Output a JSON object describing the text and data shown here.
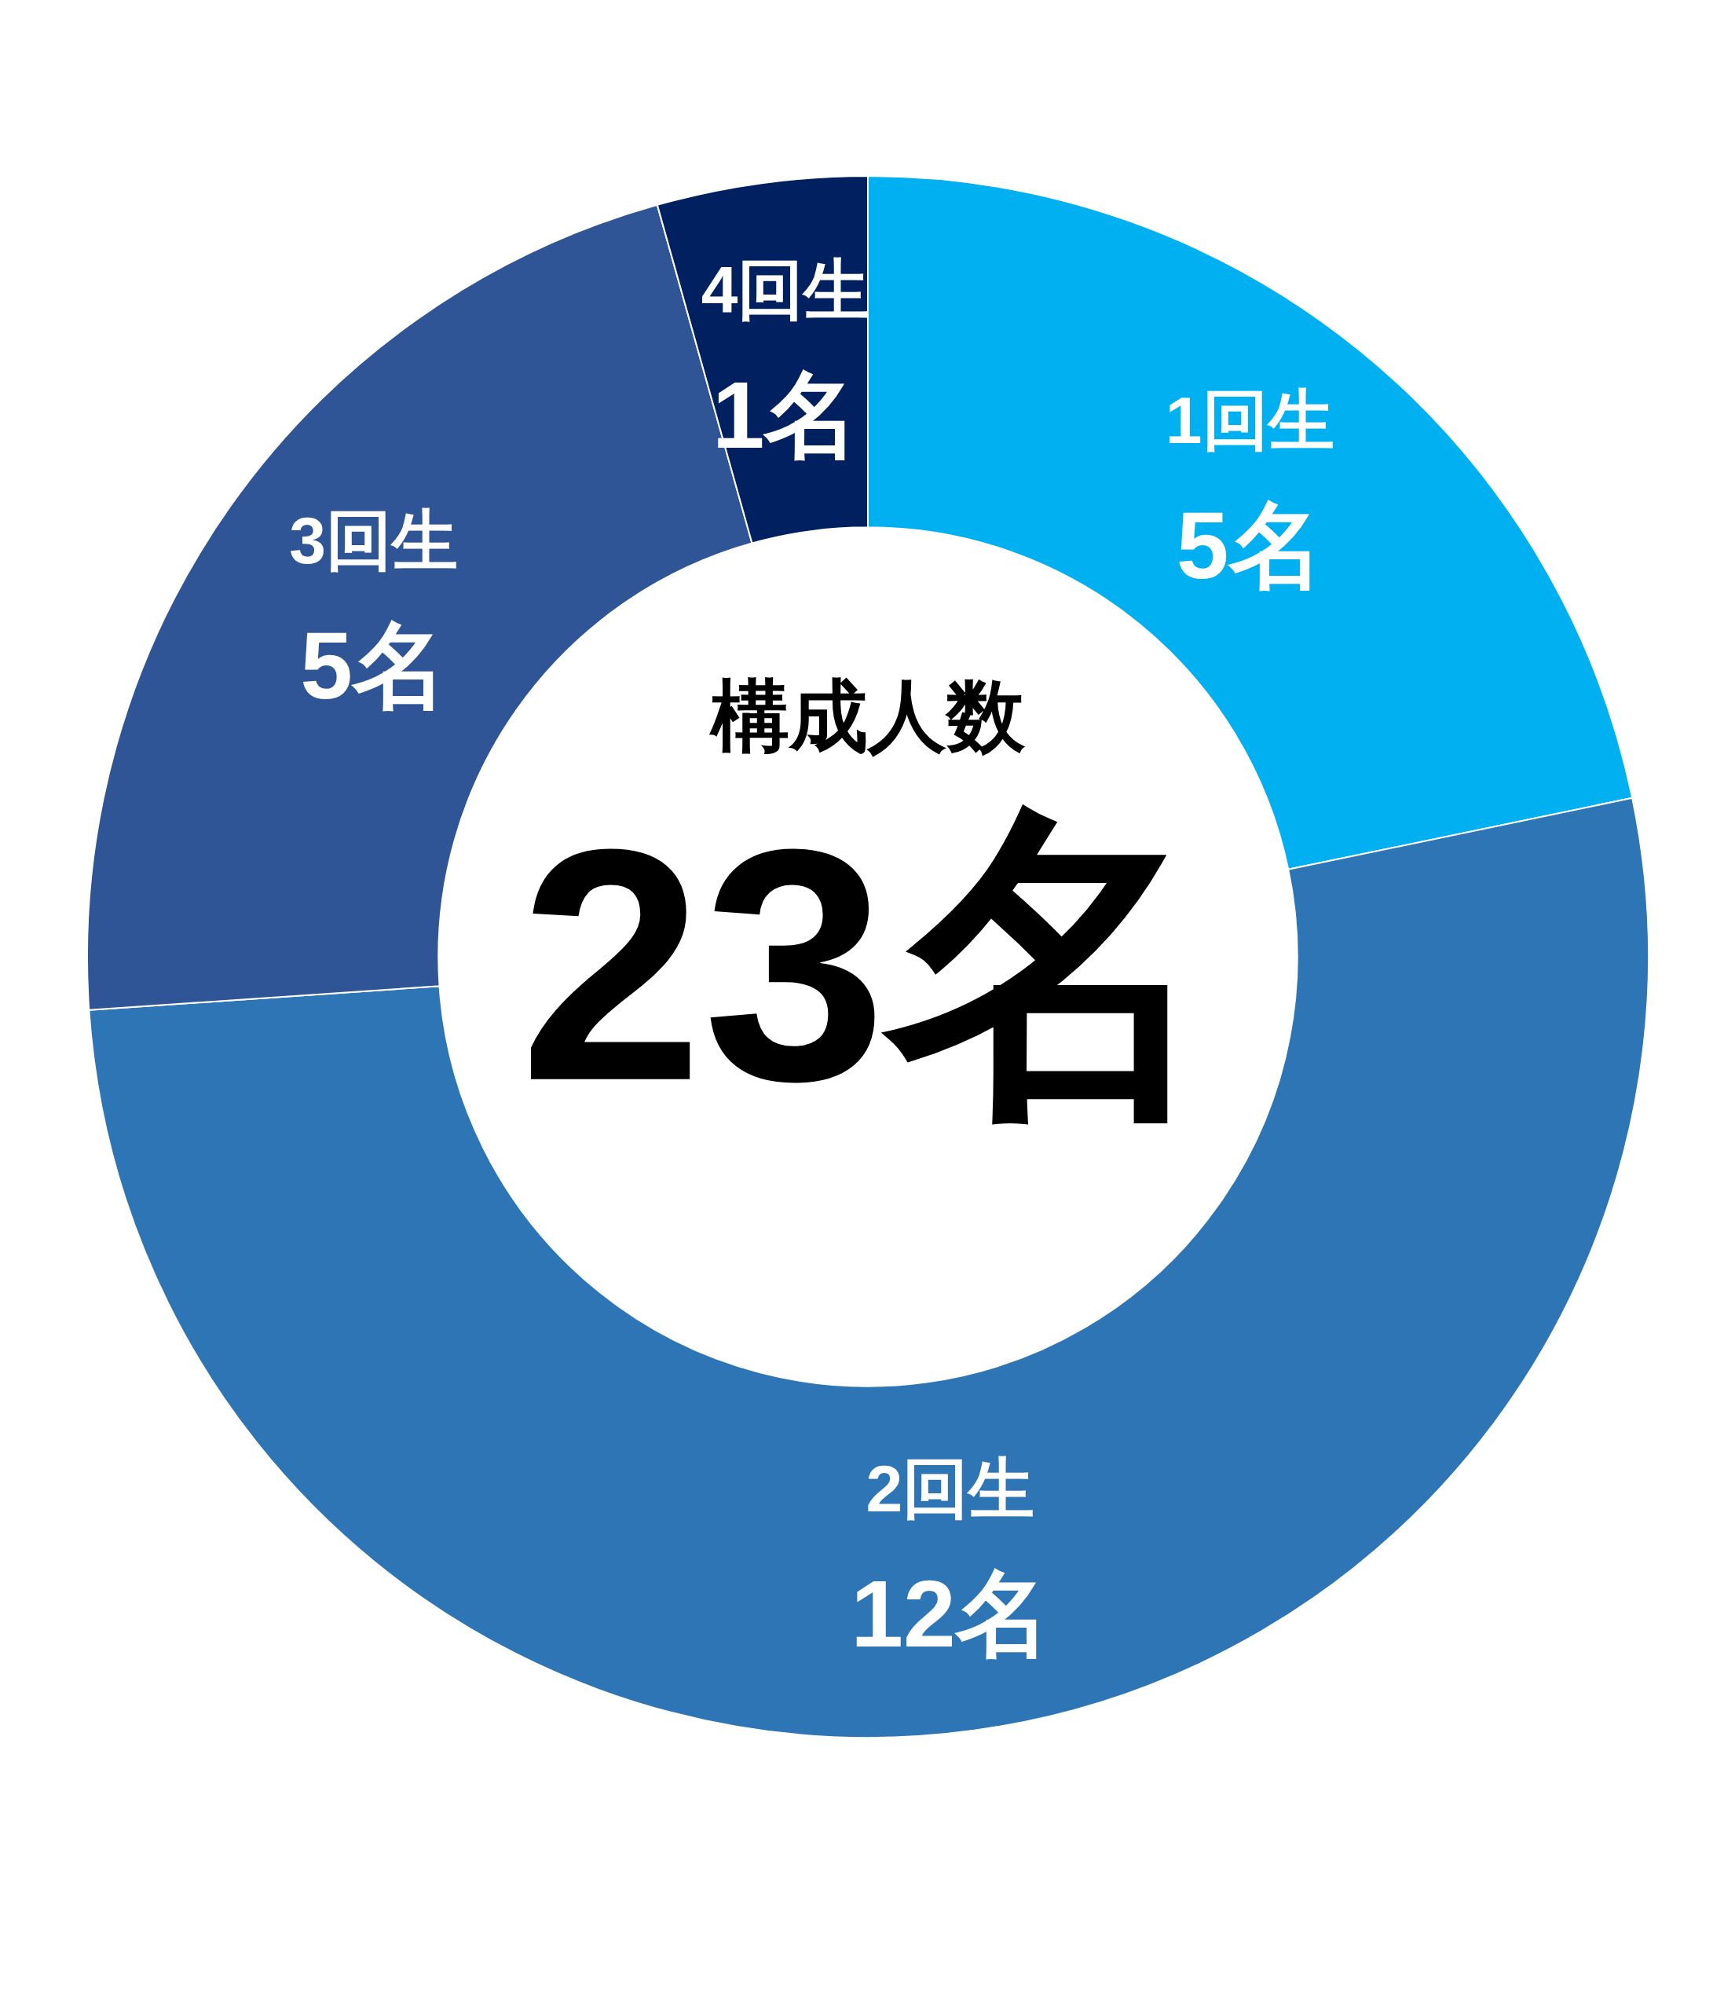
{
  "chart_data": {
    "type": "donut",
    "title": "構成人数",
    "annotations": [
      "23名"
    ],
    "categories": [
      "1回生",
      "2回生",
      "3回生",
      "4回生"
    ],
    "values": [
      5,
      12,
      5,
      1
    ],
    "value_labels": [
      "5名",
      "12名",
      "5名",
      "1名"
    ],
    "colors": [
      "#00b0f0",
      "#2e75b6",
      "#2f5597",
      "#002060"
    ]
  }
}
